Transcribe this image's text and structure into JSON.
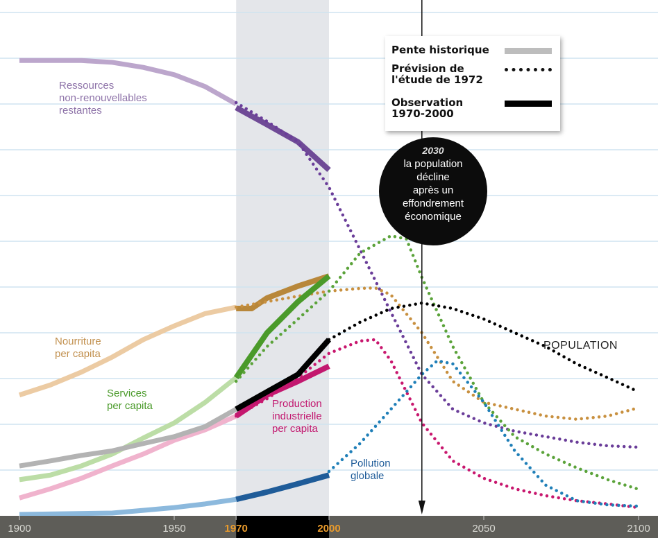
{
  "chart_data": {
    "type": "line",
    "xlim": [
      1900,
      2100
    ],
    "ylim": [
      0,
      11.3
    ],
    "grid": true,
    "x_ticks": [
      {
        "value": 1900,
        "label": "1900"
      },
      {
        "value": 1950,
        "label": "1950"
      },
      {
        "value": 1970,
        "label": "1970",
        "highlight": true
      },
      {
        "value": 2000,
        "label": "2000",
        "highlight": true
      },
      {
        "value": 2050,
        "label": "2050"
      },
      {
        "value": 2100,
        "label": "2100"
      }
    ],
    "shaded_range": [
      1970,
      2000
    ],
    "marker_year": 2030,
    "legend": {
      "placement": "top-right",
      "historical": "Pente historique",
      "forecast": "Prévision de l'étude de 1972",
      "observed": "Observation 1970-2000"
    },
    "annotation": {
      "year": "2030",
      "text": [
        "la population",
        "décline",
        "après un",
        "effondrement",
        "économique"
      ]
    },
    "series": [
      {
        "name": "Ressources non-renouvellables restantes",
        "label": [
          "Ressources",
          "non-renouvellables",
          "restantes"
        ],
        "colors": {
          "historical": "#bca6cc",
          "observed": "#6f4a96",
          "forecast": "#6a3d99"
        },
        "historical": [
          [
            1900,
            9.95
          ],
          [
            1920,
            9.95
          ],
          [
            1930,
            9.91
          ],
          [
            1940,
            9.8
          ],
          [
            1950,
            9.64
          ],
          [
            1960,
            9.38
          ],
          [
            1970,
            9.0
          ]
        ],
        "observed": [
          [
            1970,
            8.92
          ],
          [
            1980,
            8.55
          ],
          [
            1990,
            8.17
          ],
          [
            2000,
            7.56
          ]
        ],
        "forecast": [
          [
            1970,
            9.03
          ],
          [
            1980,
            8.62
          ],
          [
            1990,
            8.17
          ],
          [
            2000,
            7.18
          ],
          [
            2010,
            5.82
          ],
          [
            2020,
            4.45
          ],
          [
            2030,
            3.09
          ],
          [
            2040,
            2.33
          ],
          [
            2050,
            2.03
          ],
          [
            2060,
            1.85
          ],
          [
            2070,
            1.73
          ],
          [
            2080,
            1.61
          ],
          [
            2090,
            1.53
          ],
          [
            2100,
            1.5
          ]
        ]
      },
      {
        "name": "Nourriture per capita",
        "label": [
          "Nourriture",
          "per capita"
        ],
        "colors": {
          "historical": "#eccba3",
          "observed": "#b8873a",
          "forecast": "#c8903f"
        },
        "historical": [
          [
            1900,
            2.64
          ],
          [
            1910,
            2.86
          ],
          [
            1920,
            3.14
          ],
          [
            1930,
            3.47
          ],
          [
            1940,
            3.85
          ],
          [
            1950,
            4.15
          ],
          [
            1960,
            4.42
          ],
          [
            1970,
            4.56
          ]
        ],
        "observed": [
          [
            1970,
            4.53
          ],
          [
            1975,
            4.53
          ],
          [
            1980,
            4.76
          ],
          [
            1990,
            5.02
          ],
          [
            2000,
            5.24
          ]
        ],
        "forecast": [
          [
            1970,
            4.56
          ],
          [
            1980,
            4.68
          ],
          [
            1990,
            4.8
          ],
          [
            2000,
            4.91
          ],
          [
            2010,
            4.97
          ],
          [
            2015,
            4.98
          ],
          [
            2020,
            4.83
          ],
          [
            2030,
            4.0
          ],
          [
            2040,
            2.94
          ],
          [
            2050,
            2.48
          ],
          [
            2060,
            2.33
          ],
          [
            2070,
            2.18
          ],
          [
            2080,
            2.11
          ],
          [
            2090,
            2.18
          ],
          [
            2100,
            2.36
          ]
        ]
      },
      {
        "name": "Services per capita",
        "label": [
          "Services",
          "per capita"
        ],
        "colors": {
          "historical": "#bcdda6",
          "observed": "#4a9a2a",
          "forecast": "#5ba33a"
        },
        "historical": [
          [
            1900,
            0.79
          ],
          [
            1910,
            0.89
          ],
          [
            1920,
            1.09
          ],
          [
            1930,
            1.35
          ],
          [
            1940,
            1.7
          ],
          [
            1950,
            2.03
          ],
          [
            1960,
            2.48
          ],
          [
            1970,
            3.02
          ]
        ],
        "observed": [
          [
            1970,
            3.02
          ],
          [
            1980,
            4.0
          ],
          [
            1990,
            4.68
          ],
          [
            2000,
            5.24
          ]
        ],
        "forecast": [
          [
            1970,
            2.94
          ],
          [
            1980,
            3.7
          ],
          [
            1990,
            4.3
          ],
          [
            2000,
            4.91
          ],
          [
            2010,
            5.74
          ],
          [
            2020,
            6.12
          ],
          [
            2025,
            6.05
          ],
          [
            2030,
            5.21
          ],
          [
            2040,
            3.7
          ],
          [
            2050,
            2.48
          ],
          [
            2060,
            1.73
          ],
          [
            2070,
            1.35
          ],
          [
            2080,
            1.05
          ],
          [
            2090,
            0.79
          ],
          [
            2100,
            0.58
          ]
        ]
      },
      {
        "name": "Production industrielle per capita",
        "label": [
          "Production",
          "industrielle",
          "per capita"
        ],
        "colors": {
          "historical": "#f0b3cd",
          "observed": "#c2186f",
          "forecast": "#c8176e"
        },
        "historical": [
          [
            1900,
            0.39
          ],
          [
            1910,
            0.59
          ],
          [
            1920,
            0.82
          ],
          [
            1930,
            1.09
          ],
          [
            1940,
            1.35
          ],
          [
            1950,
            1.65
          ],
          [
            1960,
            1.88
          ],
          [
            1970,
            2.18
          ]
        ],
        "observed": [
          [
            1970,
            2.18
          ],
          [
            1980,
            2.64
          ],
          [
            1990,
            2.94
          ],
          [
            2000,
            3.27
          ]
        ],
        "forecast": [
          [
            1970,
            2.18
          ],
          [
            1980,
            2.56
          ],
          [
            1990,
            3.02
          ],
          [
            2000,
            3.55
          ],
          [
            2010,
            3.82
          ],
          [
            2015,
            3.85
          ],
          [
            2020,
            3.39
          ],
          [
            2030,
            2.03
          ],
          [
            2040,
            1.2
          ],
          [
            2050,
            0.82
          ],
          [
            2060,
            0.59
          ],
          [
            2070,
            0.44
          ],
          [
            2080,
            0.33
          ],
          [
            2090,
            0.26
          ],
          [
            2100,
            0.18
          ]
        ]
      },
      {
        "name": "POPULATION",
        "label": [
          "POPULATION"
        ],
        "colors": {
          "historical": "#b3b3b3",
          "observed": "#000000",
          "forecast": "#000000"
        },
        "historical": [
          [
            1900,
            1.09
          ],
          [
            1910,
            1.2
          ],
          [
            1920,
            1.32
          ],
          [
            1930,
            1.42
          ],
          [
            1940,
            1.58
          ],
          [
            1950,
            1.73
          ],
          [
            1960,
            1.95
          ],
          [
            1970,
            2.33
          ]
        ],
        "observed": [
          [
            1970,
            2.33
          ],
          [
            1980,
            2.71
          ],
          [
            1990,
            3.09
          ],
          [
            2000,
            3.85
          ]
        ],
        "forecast": [
          [
            2000,
            3.85
          ],
          [
            2010,
            4.23
          ],
          [
            2020,
            4.53
          ],
          [
            2030,
            4.65
          ],
          [
            2040,
            4.53
          ],
          [
            2050,
            4.3
          ],
          [
            2060,
            4.0
          ],
          [
            2070,
            3.7
          ],
          [
            2080,
            3.32
          ],
          [
            2090,
            3.02
          ],
          [
            2100,
            2.71
          ]
        ]
      },
      {
        "name": "Pollution globale",
        "label": [
          "Pollution",
          "globale"
        ],
        "colors": {
          "historical": "#8cb9dd",
          "observed": "#1f5c99",
          "forecast": "#1f7fb8"
        },
        "historical": [
          [
            1900,
            0.03
          ],
          [
            1930,
            0.06
          ],
          [
            1940,
            0.12
          ],
          [
            1950,
            0.18
          ],
          [
            1960,
            0.26
          ],
          [
            1970,
            0.36
          ]
        ],
        "observed": [
          [
            1970,
            0.36
          ],
          [
            1980,
            0.52
          ],
          [
            1990,
            0.7
          ],
          [
            2000,
            0.89
          ]
        ],
        "forecast": [
          [
            2000,
            0.97
          ],
          [
            2010,
            1.58
          ],
          [
            2020,
            2.33
          ],
          [
            2030,
            3.09
          ],
          [
            2035,
            3.39
          ],
          [
            2040,
            3.32
          ],
          [
            2050,
            2.48
          ],
          [
            2060,
            1.42
          ],
          [
            2070,
            0.67
          ],
          [
            2080,
            0.33
          ],
          [
            2090,
            0.24
          ],
          [
            2100,
            0.21
          ]
        ]
      }
    ]
  }
}
